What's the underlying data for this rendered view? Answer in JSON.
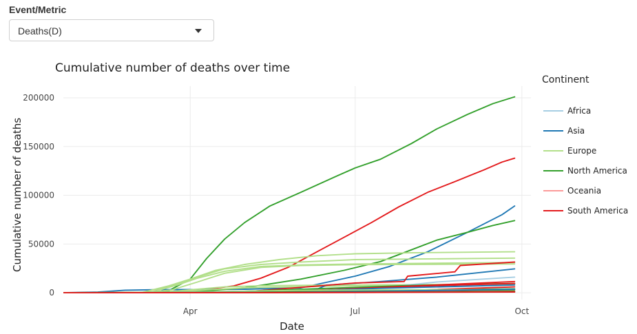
{
  "control": {
    "label": "Event/Metric",
    "selected": "Deaths(D)"
  },
  "chart_data": {
    "type": "line",
    "title": "Cumulative number of deaths over time",
    "xlabel": "Date",
    "ylabel": "Cumulative number of deaths",
    "x_ticks": [
      "Apr",
      "Jul",
      "Oct"
    ],
    "y_ticks": [
      "0",
      "50000",
      "100000",
      "150000",
      "200000"
    ],
    "xlim": [
      "2020-01-22",
      "2020-10-06"
    ],
    "ylim": [
      -7000,
      212000
    ],
    "grid": true,
    "legend_title": "Continent",
    "legend_position": "right",
    "continents": [
      {
        "name": "Africa",
        "color": "#a6cee3"
      },
      {
        "name": "Asia",
        "color": "#1f78b4"
      },
      {
        "name": "Europe",
        "color": "#b2df8a"
      },
      {
        "name": "North America",
        "color": "#33a02c"
      },
      {
        "name": "Oceania",
        "color": "#fb9a99"
      },
      {
        "name": "South America",
        "color": "#e31a1c"
      }
    ],
    "series": [
      {
        "continent": "North America",
        "x": [
          "2020-01-22",
          "2020-03-12",
          "2020-03-20",
          "2020-04-01",
          "2020-04-10",
          "2020-04-20",
          "2020-05-01",
          "2020-05-15",
          "2020-06-01",
          "2020-06-20",
          "2020-07-01",
          "2020-07-15",
          "2020-08-01",
          "2020-08-15",
          "2020-09-01",
          "2020-09-15",
          "2020-09-27"
        ],
        "y": [
          0,
          100,
          2000,
          14000,
          35000,
          55000,
          72000,
          89000,
          103000,
          119000,
          128000,
          137000,
          153000,
          168000,
          183000,
          194000,
          201000
        ]
      },
      {
        "continent": "South America",
        "x": [
          "2020-01-22",
          "2020-03-25",
          "2020-04-10",
          "2020-04-25",
          "2020-05-10",
          "2020-05-25",
          "2020-06-10",
          "2020-06-25",
          "2020-07-10",
          "2020-07-25",
          "2020-08-10",
          "2020-08-25",
          "2020-09-10",
          "2020-09-20",
          "2020-09-27"
        ],
        "y": [
          0,
          500,
          3500,
          7000,
          15000,
          26000,
          42000,
          57000,
          72000,
          88000,
          103000,
          114000,
          126000,
          134000,
          138000
        ]
      },
      {
        "continent": "Asia",
        "x": [
          "2020-01-22",
          "2020-02-10",
          "2020-02-25",
          "2020-03-15",
          "2020-04-01",
          "2020-05-01",
          "2020-06-01",
          "2020-07-01",
          "2020-07-20",
          "2020-08-10",
          "2020-09-01",
          "2020-09-20",
          "2020-09-27"
        ],
        "y": [
          0,
          700,
          2600,
          3200,
          3300,
          3600,
          5000,
          17000,
          27000,
          42000,
          62000,
          80000,
          89000
        ]
      },
      {
        "continent": "North America",
        "x": [
          "2020-01-22",
          "2020-04-01",
          "2020-05-01",
          "2020-06-01",
          "2020-06-25",
          "2020-07-15",
          "2020-08-01",
          "2020-08-15",
          "2020-09-01",
          "2020-09-15",
          "2020-09-27"
        ],
        "y": [
          0,
          800,
          5000,
          14000,
          23000,
          32000,
          44000,
          54000,
          62000,
          69000,
          74000
        ]
      },
      {
        "continent": "Europe",
        "x": [
          "2020-01-22",
          "2020-03-05",
          "2020-03-20",
          "2020-04-01",
          "2020-04-15",
          "2020-05-01",
          "2020-05-20",
          "2020-06-10",
          "2020-07-01",
          "2020-08-01",
          "2020-09-27"
        ],
        "y": [
          0,
          100,
          7000,
          14000,
          23000,
          29000,
          34000,
          38000,
          40000,
          41000,
          42000
        ]
      },
      {
        "continent": "Europe",
        "x": [
          "2020-01-22",
          "2020-03-05",
          "2020-03-20",
          "2020-04-05",
          "2020-04-20",
          "2020-05-10",
          "2020-06-01",
          "2020-07-01",
          "2020-09-27"
        ],
        "y": [
          0,
          200,
          6000,
          16000,
          24500,
          29000,
          31500,
          34000,
          35500
        ]
      },
      {
        "continent": "Europe",
        "x": [
          "2020-01-22",
          "2020-03-10",
          "2020-03-25",
          "2020-04-05",
          "2020-04-20",
          "2020-05-10",
          "2020-06-01",
          "2020-07-01",
          "2020-09-27"
        ],
        "y": [
          0,
          300,
          8000,
          15000,
          22000,
          27000,
          28500,
          29500,
          31000
        ]
      },
      {
        "continent": "Europe",
        "x": [
          "2020-01-22",
          "2020-03-08",
          "2020-03-22",
          "2020-04-05",
          "2020-04-20",
          "2020-05-10",
          "2020-06-01",
          "2020-07-01",
          "2020-09-27"
        ],
        "y": [
          0,
          100,
          3000,
          11000,
          20000,
          26000,
          28000,
          28800,
          29500
        ]
      },
      {
        "continent": "Europe",
        "x": [
          "2020-01-22",
          "2020-03-15",
          "2020-04-01",
          "2020-04-20",
          "2020-05-10",
          "2020-06-15",
          "2020-09-27"
        ],
        "y": [
          0,
          200,
          3000,
          6000,
          7200,
          7800,
          8800
        ]
      },
      {
        "continent": "Europe",
        "x": [
          "2020-01-22",
          "2020-03-20",
          "2020-04-10",
          "2020-05-01",
          "2020-06-01",
          "2020-07-15",
          "2020-09-27"
        ],
        "y": [
          0,
          300,
          3000,
          5000,
          6200,
          7500,
          9500
        ]
      },
      {
        "continent": "Asia",
        "x": [
          "2020-01-22",
          "2020-03-20",
          "2020-05-01",
          "2020-06-10",
          "2020-06-15",
          "2020-07-15",
          "2020-08-15",
          "2020-09-27"
        ],
        "y": [
          0,
          200,
          1500,
          3500,
          7800,
          11500,
          16000,
          24500
        ]
      },
      {
        "continent": "South America",
        "x": [
          "2020-01-22",
          "2020-04-01",
          "2020-05-01",
          "2020-06-01",
          "2020-07-01",
          "2020-07-28",
          "2020-07-30",
          "2020-08-25",
          "2020-08-28",
          "2020-09-27"
        ],
        "y": [
          0,
          100,
          1000,
          5500,
          10000,
          11500,
          17000,
          21500,
          28000,
          31500
        ]
      },
      {
        "continent": "Africa",
        "x": [
          "2020-01-22",
          "2020-04-10",
          "2020-05-15",
          "2020-06-15",
          "2020-07-15",
          "2020-08-15",
          "2020-09-27"
        ],
        "y": [
          0,
          100,
          500,
          1500,
          5000,
          11000,
          16000
        ]
      },
      {
        "continent": "North America",
        "x": [
          "2020-01-22",
          "2020-04-01",
          "2020-05-01",
          "2020-06-01",
          "2020-07-01",
          "2020-08-01",
          "2020-09-27"
        ],
        "y": [
          0,
          200,
          1500,
          3500,
          5500,
          7500,
          9500
        ]
      },
      {
        "continent": "South America",
        "x": [
          "2020-01-22",
          "2020-04-15",
          "2020-05-15",
          "2020-06-15",
          "2020-07-15",
          "2020-08-15",
          "2020-09-27"
        ],
        "y": [
          0,
          200,
          1200,
          3000,
          5500,
          8000,
          11500
        ]
      },
      {
        "continent": "South America",
        "x": [
          "2020-01-22",
          "2020-05-01",
          "2020-06-01",
          "2020-07-01",
          "2020-08-01",
          "2020-09-27"
        ],
        "y": [
          0,
          500,
          2000,
          4000,
          6500,
          9500
        ]
      },
      {
        "continent": "Asia",
        "x": [
          "2020-01-22",
          "2020-04-15",
          "2020-06-01",
          "2020-07-15",
          "2020-09-27"
        ],
        "y": [
          0,
          300,
          1800,
          4500,
          8000
        ]
      },
      {
        "continent": "North America",
        "x": [
          "2020-01-22",
          "2020-04-15",
          "2020-06-01",
          "2020-07-15",
          "2020-09-27"
        ],
        "y": [
          0,
          300,
          1200,
          2500,
          4000
        ]
      },
      {
        "continent": "South America",
        "x": [
          "2020-01-22",
          "2020-05-01",
          "2020-06-15",
          "2020-08-01",
          "2020-09-27"
        ],
        "y": [
          0,
          200,
          800,
          2500,
          6000
        ]
      },
      {
        "continent": "Oceania",
        "x": [
          "2020-01-22",
          "2020-04-01",
          "2020-07-01",
          "2020-09-27"
        ],
        "y": [
          0,
          20,
          100,
          900
        ]
      },
      {
        "continent": "Europe",
        "x": [
          "2020-01-22",
          "2020-04-01",
          "2020-06-01",
          "2020-09-27"
        ],
        "y": [
          0,
          800,
          2500,
          3500
        ]
      },
      {
        "continent": "North America",
        "x": [
          "2020-01-22",
          "2020-05-01",
          "2020-07-01",
          "2020-09-27"
        ],
        "y": [
          0,
          400,
          1500,
          3000
        ]
      },
      {
        "continent": "Asia",
        "x": [
          "2020-01-22",
          "2020-05-15",
          "2020-07-15",
          "2020-09-27"
        ],
        "y": [
          0,
          300,
          1500,
          3500
        ]
      },
      {
        "continent": "South America",
        "x": [
          "2020-01-22",
          "2020-05-01",
          "2020-07-01",
          "2020-09-27"
        ],
        "y": [
          0,
          100,
          500,
          1500
        ]
      },
      {
        "continent": "North America",
        "x": [
          "2020-01-22",
          "2020-05-01",
          "2020-07-01",
          "2020-09-27"
        ],
        "y": [
          0,
          100,
          400,
          1200
        ]
      },
      {
        "continent": "South America",
        "x": [
          "2020-01-22",
          "2020-05-15",
          "2020-09-27"
        ],
        "y": [
          0,
          100,
          700
        ]
      }
    ]
  }
}
